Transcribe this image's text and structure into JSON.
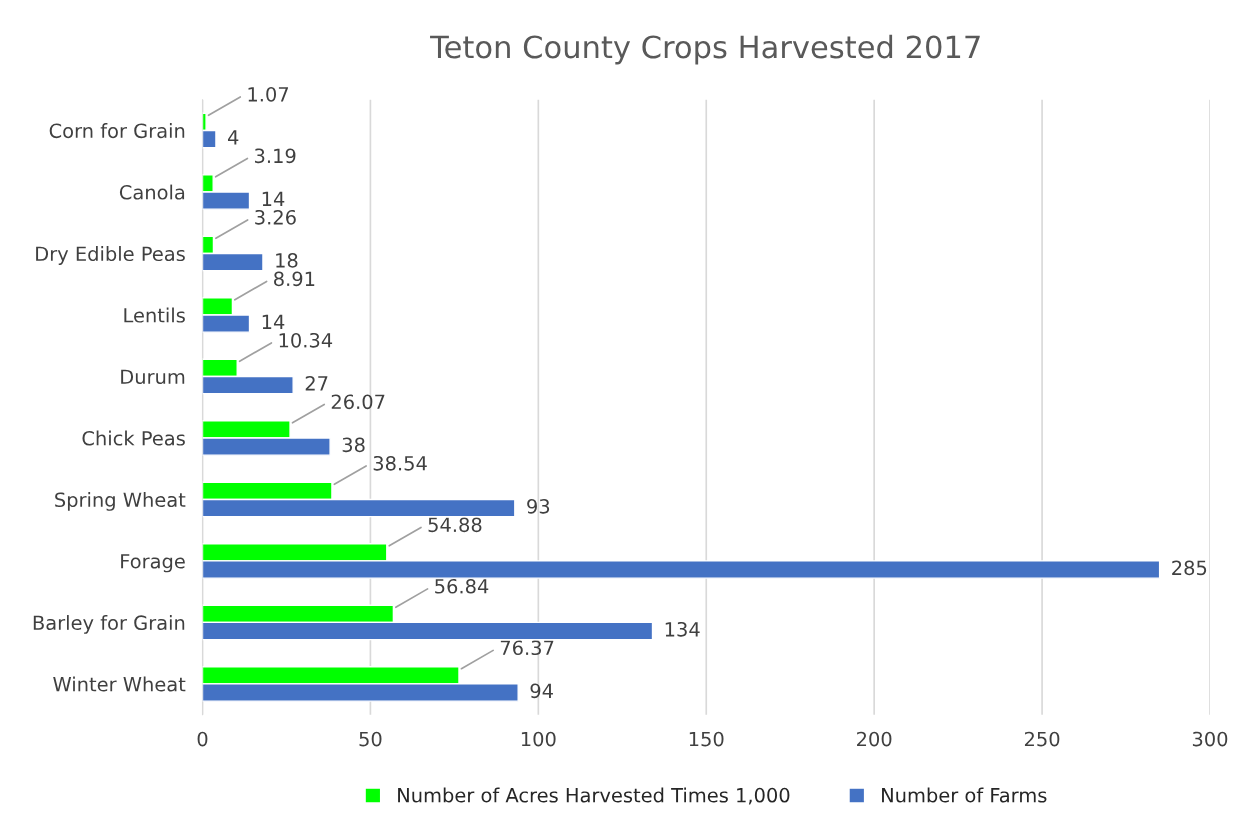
{
  "chart_data": {
    "type": "bar",
    "orientation": "horizontal",
    "title": "Teton County Crops Harvested 2017",
    "categories": [
      "Corn for Grain",
      "Canola",
      "Dry Edible Peas",
      "Lentils",
      "Durum",
      "Chick Peas",
      "Spring Wheat",
      "Forage",
      "Barley for Grain",
      "Winter Wheat"
    ],
    "series": [
      {
        "name": "Number of Acres Harvested Times 1,000",
        "color": "#00ff00",
        "values": [
          1.07,
          3.19,
          3.26,
          8.91,
          10.34,
          26.07,
          38.54,
          54.88,
          56.84,
          76.37
        ]
      },
      {
        "name": "Number of Farms",
        "color": "#4472c4",
        "values": [
          4,
          14,
          18,
          14,
          27,
          38,
          93,
          285,
          134,
          94
        ]
      }
    ],
    "xlim": [
      0,
      300
    ],
    "xticks": [
      0,
      50,
      100,
      150,
      200,
      250,
      300
    ],
    "grid": "x",
    "legend": "bottom",
    "data_labels": true
  }
}
